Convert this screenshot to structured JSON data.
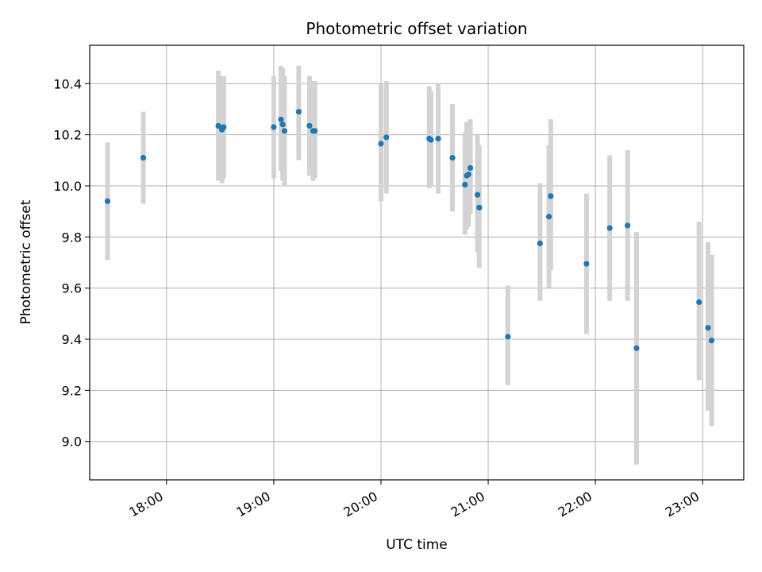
{
  "chart_data": {
    "type": "scatter",
    "title": "Photometric offset variation",
    "xlabel": "UTC time",
    "ylabel": "Photometric offset",
    "xlim": [
      "17:17",
      "23:23"
    ],
    "ylim": [
      8.85,
      10.55
    ],
    "x_ticks": [
      "18:00",
      "19:00",
      "20:00",
      "21:00",
      "22:00",
      "23:00"
    ],
    "y_ticks": [
      9.0,
      9.2,
      9.4,
      9.6,
      9.8,
      10.0,
      10.2,
      10.4
    ],
    "grid": true,
    "colors": {
      "points": "#1f77b4",
      "error_bars": "#d3d3d3",
      "grid": "#b0b0b0"
    },
    "points": [
      {
        "x": "17:27",
        "y": 9.94,
        "err_low": 9.71,
        "err_high": 10.17
      },
      {
        "x": "17:47",
        "y": 10.11,
        "err_low": 9.93,
        "err_high": 10.29
      },
      {
        "x": "18:29",
        "y": 10.235,
        "err_low": 10.02,
        "err_high": 10.45
      },
      {
        "x": "18:31",
        "y": 10.22,
        "err_low": 10.01,
        "err_high": 10.43
      },
      {
        "x": "18:32",
        "y": 10.23,
        "err_low": 10.03,
        "err_high": 10.43
      },
      {
        "x": "19:00",
        "y": 10.23,
        "err_low": 10.03,
        "err_high": 10.43
      },
      {
        "x": "19:04",
        "y": 10.26,
        "err_low": 10.06,
        "err_high": 10.47
      },
      {
        "x": "19:05",
        "y": 10.24,
        "err_low": 10.02,
        "err_high": 10.46
      },
      {
        "x": "19:06",
        "y": 10.215,
        "err_low": 10.0,
        "err_high": 10.43
      },
      {
        "x": "19:14",
        "y": 10.29,
        "err_low": 10.1,
        "err_high": 10.47
      },
      {
        "x": "19:20",
        "y": 10.235,
        "err_low": 10.04,
        "err_high": 10.43
      },
      {
        "x": "19:22",
        "y": 10.215,
        "err_low": 10.02,
        "err_high": 10.41
      },
      {
        "x": "19:23",
        "y": 10.215,
        "err_low": 10.03,
        "err_high": 10.41
      },
      {
        "x": "20:00",
        "y": 10.165,
        "err_low": 9.94,
        "err_high": 10.4
      },
      {
        "x": "20:03",
        "y": 10.19,
        "err_low": 9.97,
        "err_high": 10.41
      },
      {
        "x": "20:27",
        "y": 10.185,
        "err_low": 9.99,
        "err_high": 10.39
      },
      {
        "x": "20:28",
        "y": 10.18,
        "err_low": 10.0,
        "err_high": 10.37
      },
      {
        "x": "20:32",
        "y": 10.185,
        "err_low": 9.97,
        "err_high": 10.4
      },
      {
        "x": "20:40",
        "y": 10.11,
        "err_low": 9.9,
        "err_high": 10.32
      },
      {
        "x": "20:47",
        "y": 10.005,
        "err_low": 9.81,
        "err_high": 10.21
      },
      {
        "x": "20:48",
        "y": 10.04,
        "err_low": 9.83,
        "err_high": 10.25
      },
      {
        "x": "20:49",
        "y": 10.045,
        "err_low": 9.84,
        "err_high": 10.25
      },
      {
        "x": "20:50",
        "y": 10.07,
        "err_low": 9.89,
        "err_high": 10.26
      },
      {
        "x": "20:54",
        "y": 9.965,
        "err_low": 9.74,
        "err_high": 10.2
      },
      {
        "x": "20:55",
        "y": 9.915,
        "err_low": 9.68,
        "err_high": 10.16
      },
      {
        "x": "21:11",
        "y": 9.41,
        "err_low": 9.22,
        "err_high": 9.61
      },
      {
        "x": "21:29",
        "y": 9.775,
        "err_low": 9.55,
        "err_high": 10.01
      },
      {
        "x": "21:34",
        "y": 9.88,
        "err_low": 9.6,
        "err_high": 10.16
      },
      {
        "x": "21:35",
        "y": 9.96,
        "err_low": 9.67,
        "err_high": 10.26
      },
      {
        "x": "21:55",
        "y": 9.695,
        "err_low": 9.42,
        "err_high": 9.97
      },
      {
        "x": "22:08",
        "y": 9.835,
        "err_low": 9.55,
        "err_high": 10.12
      },
      {
        "x": "22:18",
        "y": 9.845,
        "err_low": 9.55,
        "err_high": 10.14
      },
      {
        "x": "22:23",
        "y": 9.365,
        "err_low": 8.91,
        "err_high": 9.82
      },
      {
        "x": "22:58",
        "y": 9.545,
        "err_low": 9.24,
        "err_high": 9.86
      },
      {
        "x": "23:03",
        "y": 9.445,
        "err_low": 9.12,
        "err_high": 9.78
      },
      {
        "x": "23:05",
        "y": 9.395,
        "err_low": 9.06,
        "err_high": 9.73
      }
    ]
  }
}
